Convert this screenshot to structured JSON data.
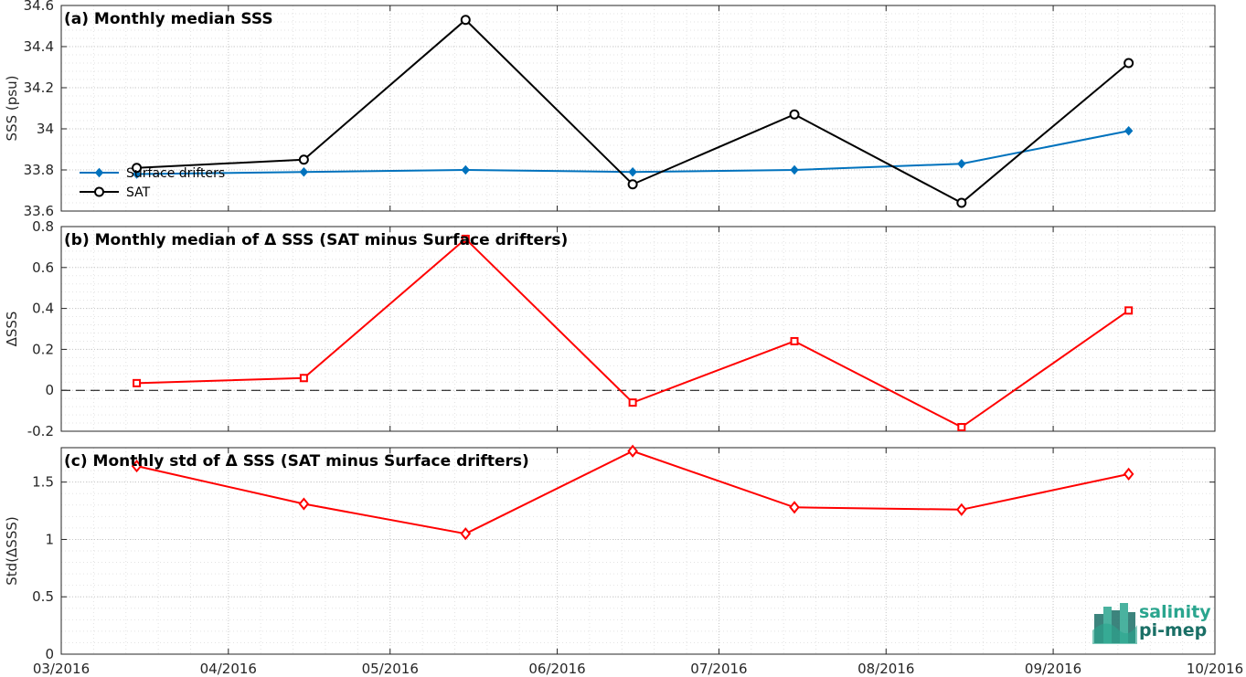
{
  "logo": {
    "line1": "salinity",
    "line2": "pi-mep",
    "color": "#2aa58e",
    "dark": "#1a6f66"
  },
  "chart_data": [
    {
      "type": "line",
      "title": "(a) Monthly median SSS",
      "ylabel": "SSS (psu)",
      "ylim": [
        33.6,
        34.6
      ],
      "yticks": [
        33.6,
        33.8,
        34,
        34.2,
        34.4,
        34.6
      ],
      "ytick_labels": [
        "33.6",
        "33.8",
        "34",
        "34.2",
        "34.4",
        "34.6"
      ],
      "grid": true,
      "legend_position": "left",
      "x": [
        "2016-03-15",
        "2016-04-15",
        "2016-05-15",
        "2016-06-15",
        "2016-07-15",
        "2016-08-15",
        "2016-09-15"
      ],
      "series": [
        {
          "name": "Surface drifters",
          "color": "#0072bd",
          "marker": "diamond-filled",
          "values": [
            33.78,
            33.79,
            33.8,
            33.79,
            33.8,
            33.83,
            33.99
          ]
        },
        {
          "name": "SAT",
          "color": "#000000",
          "marker": "circle",
          "values": [
            33.81,
            33.85,
            34.53,
            33.73,
            34.07,
            33.64,
            34.32
          ]
        }
      ]
    },
    {
      "type": "line",
      "title": "(b) Monthly median of Δ SSS (SAT minus Surface drifters)",
      "ylabel": "ΔSSS",
      "ylim": [
        -0.2,
        0.8
      ],
      "yticks": [
        -0.2,
        0,
        0.2,
        0.4,
        0.6,
        0.8
      ],
      "ytick_labels": [
        "-0.2",
        "0",
        "0.2",
        "0.4",
        "0.6",
        "0.8"
      ],
      "grid": true,
      "zero_line": true,
      "x": [
        "2016-03-15",
        "2016-04-15",
        "2016-05-15",
        "2016-06-15",
        "2016-07-15",
        "2016-08-15",
        "2016-09-15"
      ],
      "series": [
        {
          "color": "#ff0000",
          "marker": "square",
          "values": [
            0.035,
            0.06,
            0.74,
            -0.06,
            0.24,
            -0.18,
            0.39
          ]
        }
      ]
    },
    {
      "type": "line",
      "title": "(c) Monthly std of Δ SSS (SAT minus Surface drifters)",
      "ylabel": "Std(ΔSSS)",
      "ylim": [
        0,
        1.8
      ],
      "yticks": [
        0,
        0.5,
        1,
        1.5
      ],
      "ytick_labels": [
        "0",
        "0.5",
        "1",
        "1.5"
      ],
      "grid": true,
      "x": [
        "2016-03-15",
        "2016-04-15",
        "2016-05-15",
        "2016-06-15",
        "2016-07-15",
        "2016-08-15",
        "2016-09-15"
      ],
      "series": [
        {
          "color": "#ff0000",
          "marker": "diamond",
          "values": [
            1.64,
            1.31,
            1.05,
            1.77,
            1.28,
            1.26,
            1.57
          ]
        }
      ]
    }
  ],
  "x_axis": {
    "range": [
      "2016-03-01",
      "2016-10-01"
    ],
    "ticks": [
      "2016-03-01",
      "2016-04-01",
      "2016-05-01",
      "2016-06-01",
      "2016-07-01",
      "2016-08-01",
      "2016-09-01",
      "2016-10-01"
    ],
    "tick_labels": [
      "03/2016",
      "04/2016",
      "05/2016",
      "06/2016",
      "07/2016",
      "08/2016",
      "09/2016",
      "10/2016"
    ]
  }
}
